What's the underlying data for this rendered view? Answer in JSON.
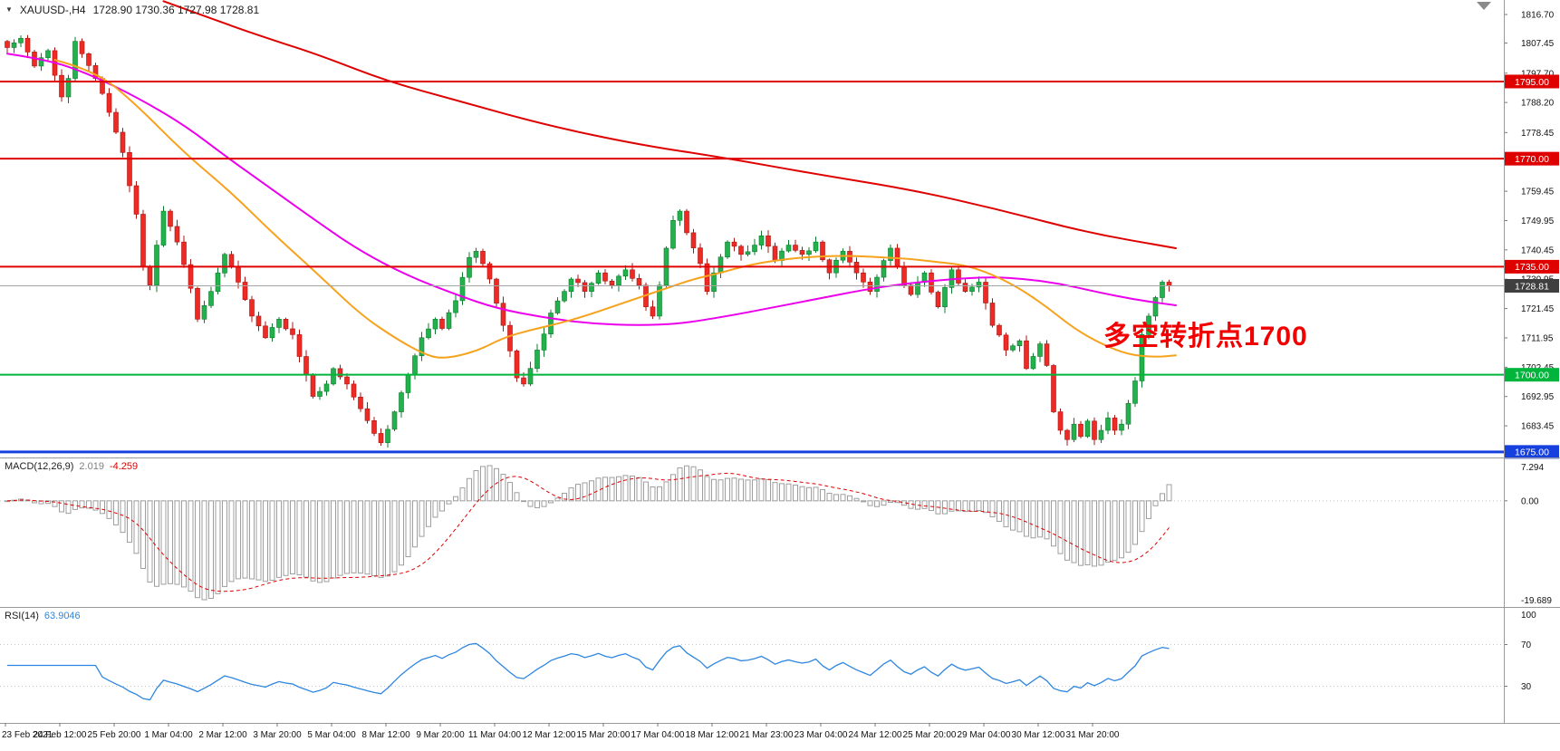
{
  "colors": {
    "background": "#FFFFFF",
    "up": "#22B14C",
    "up_border": "#0E7A2E",
    "down": "#EE2A24",
    "down_border": "#A81511",
    "line_red": "#DF0000",
    "line_green": "#00B43C",
    "line_blue": "#1641DE",
    "current_line": "#A6A6A6",
    "current_tag_bg": "#3F3F3F",
    "ma_red": "#DF0000",
    "ma_magenta": "#EC00EC",
    "ma_orange": "#F6A21C",
    "macd_bar": "#9E9E9E",
    "macd_signal": "#DF0000",
    "rsi_line": "#2E86E0",
    "annotation": "#F00000",
    "grid_dotted": "#C8C8C8",
    "separator": "#9A9A9A",
    "axis_text": "#111111"
  },
  "chart": {
    "title": {
      "dropdown_icon": "▼",
      "symbol": "XAUUSD-,H4",
      "ohlc": "1728.90 1730.36 1727.98 1728.81"
    },
    "annotation": {
      "text": "多空转折点1700"
    },
    "price_axis": {
      "ticks": [
        "1816.70",
        "1807.45",
        "1797.70",
        "1788.20",
        "1778.45",
        "1759.45",
        "1749.95",
        "1740.45",
        "1730.95",
        "1721.45",
        "1711.95",
        "1702.45",
        "1692.95",
        "1683.45"
      ],
      "range": {
        "top": 1821.4,
        "bottom": 1673.2
      }
    },
    "hlines": [
      {
        "price": 1795.0,
        "tag": "1795.00",
        "color_key": "line_red",
        "width": 2
      },
      {
        "price": 1770.0,
        "tag": "1770.00",
        "color_key": "line_red",
        "width": 2
      },
      {
        "price": 1735.0,
        "tag": "1735.00",
        "color_key": "line_red",
        "width": 2
      },
      {
        "price": 1700.0,
        "tag": "1700.00",
        "color_key": "line_green",
        "width": 2
      },
      {
        "price": 1675.0,
        "tag": "1675.00",
        "color_key": "line_blue",
        "width": 3
      }
    ],
    "current_price": {
      "value": 1728.81,
      "tag": "1728.81"
    },
    "candles": {
      "count": 172,
      "close_waypoints": [
        [
          0,
          1806
        ],
        [
          2,
          1809
        ],
        [
          4,
          1800
        ],
        [
          6,
          1805
        ],
        [
          7,
          1797
        ],
        [
          8,
          1790
        ],
        [
          9,
          1796
        ],
        [
          10,
          1808
        ],
        [
          11,
          1804
        ],
        [
          13,
          1796
        ],
        [
          15,
          1785
        ],
        [
          17,
          1772
        ],
        [
          19,
          1752
        ],
        [
          20,
          1735
        ],
        [
          21,
          1729
        ],
        [
          22,
          1742
        ],
        [
          23,
          1753
        ],
        [
          25,
          1743
        ],
        [
          27,
          1728
        ],
        [
          28,
          1718
        ],
        [
          30,
          1727
        ],
        [
          32,
          1739
        ],
        [
          34,
          1730
        ],
        [
          36,
          1719
        ],
        [
          38,
          1712
        ],
        [
          40,
          1718
        ],
        [
          42,
          1713
        ],
        [
          44,
          1700
        ],
        [
          45,
          1693
        ],
        [
          47,
          1697
        ],
        [
          48,
          1702
        ],
        [
          50,
          1697
        ],
        [
          52,
          1689
        ],
        [
          54,
          1681
        ],
        [
          55,
          1678
        ],
        [
          57,
          1688
        ],
        [
          59,
          1700
        ],
        [
          61,
          1712
        ],
        [
          63,
          1718
        ],
        [
          64,
          1715
        ],
        [
          66,
          1724
        ],
        [
          68,
          1738
        ],
        [
          69,
          1740
        ],
        [
          71,
          1731
        ],
        [
          73,
          1716
        ],
        [
          75,
          1699
        ],
        [
          76,
          1697
        ],
        [
          78,
          1708
        ],
        [
          80,
          1720
        ],
        [
          82,
          1727
        ],
        [
          83,
          1731
        ],
        [
          85,
          1727
        ],
        [
          87,
          1733
        ],
        [
          89,
          1729
        ],
        [
          91,
          1734
        ],
        [
          93,
          1729
        ],
        [
          94,
          1722
        ],
        [
          95,
          1719
        ],
        [
          96,
          1729
        ],
        [
          97,
          1741
        ],
        [
          98,
          1750
        ],
        [
          99,
          1753
        ],
        [
          100,
          1746
        ],
        [
          102,
          1736
        ],
        [
          103,
          1727
        ],
        [
          104,
          1733
        ],
        [
          106,
          1743
        ],
        [
          108,
          1739
        ],
        [
          110,
          1742
        ],
        [
          111,
          1745
        ],
        [
          113,
          1737
        ],
        [
          115,
          1742
        ],
        [
          117,
          1739
        ],
        [
          119,
          1743
        ],
        [
          121,
          1733
        ],
        [
          123,
          1740
        ],
        [
          125,
          1733
        ],
        [
          127,
          1727
        ],
        [
          129,
          1737
        ],
        [
          130,
          1741
        ],
        [
          132,
          1729
        ],
        [
          133,
          1726
        ],
        [
          135,
          1733
        ],
        [
          137,
          1722
        ],
        [
          139,
          1734
        ],
        [
          141,
          1727
        ],
        [
          143,
          1730
        ],
        [
          145,
          1716
        ],
        [
          147,
          1708
        ],
        [
          149,
          1711
        ],
        [
          150,
          1702
        ],
        [
          152,
          1710
        ],
        [
          153,
          1703
        ],
        [
          154,
          1688
        ],
        [
          155,
          1682
        ],
        [
          156,
          1679
        ],
        [
          157,
          1684
        ],
        [
          158,
          1680
        ],
        [
          159,
          1685
        ],
        [
          160,
          1679
        ],
        [
          161,
          1682
        ],
        [
          162,
          1686
        ],
        [
          163,
          1682
        ],
        [
          164,
          1684
        ],
        [
          166,
          1698
        ],
        [
          167,
          1713
        ],
        [
          168,
          1719
        ],
        [
          169,
          1725
        ],
        [
          170,
          1730
        ],
        [
          171,
          1728.8
        ]
      ]
    },
    "moving_averages": [
      {
        "name": "ma-slow-red",
        "color_key": "ma_red",
        "width": 2,
        "points": [
          [
            23,
            1821
          ],
          [
            33,
            1813
          ],
          [
            39,
            1808.5
          ],
          [
            46,
            1803.5
          ],
          [
            56,
            1795
          ],
          [
            66,
            1789
          ],
          [
            79,
            1781
          ],
          [
            93,
            1774.5
          ],
          [
            105,
            1770.5
          ],
          [
            119,
            1765
          ],
          [
            133,
            1760
          ],
          [
            146,
            1753.5
          ],
          [
            159,
            1746
          ],
          [
            172,
            1741
          ]
        ]
      },
      {
        "name": "ma-medium-magenta",
        "color_key": "ma_magenta",
        "width": 2,
        "points": [
          [
            0,
            1804
          ],
          [
            6,
            1802
          ],
          [
            12,
            1797.5
          ],
          [
            19,
            1790
          ],
          [
            26,
            1781
          ],
          [
            32,
            1771
          ],
          [
            39,
            1760
          ],
          [
            46,
            1749
          ],
          [
            52,
            1740
          ],
          [
            59,
            1732
          ],
          [
            66,
            1726
          ],
          [
            72,
            1721.5
          ],
          [
            79,
            1718.5
          ],
          [
            86,
            1716.5
          ],
          [
            93,
            1716
          ],
          [
            99,
            1716.5
          ],
          [
            106,
            1719
          ],
          [
            112,
            1721.5
          ],
          [
            119,
            1724.5
          ],
          [
            126,
            1727.5
          ],
          [
            132,
            1729.5
          ],
          [
            139,
            1731
          ],
          [
            145,
            1731.7
          ],
          [
            150,
            1731
          ],
          [
            155,
            1729.5
          ],
          [
            160,
            1727
          ],
          [
            166,
            1724.3
          ],
          [
            172,
            1722.5
          ]
        ]
      },
      {
        "name": "ma-fast-orange",
        "color_key": "ma_orange",
        "width": 2,
        "points": [
          [
            7,
            1802
          ],
          [
            13,
            1798.5
          ],
          [
            19,
            1787.5
          ],
          [
            26,
            1772
          ],
          [
            33,
            1759
          ],
          [
            39,
            1746
          ],
          [
            46,
            1732
          ],
          [
            52,
            1719.5
          ],
          [
            57,
            1712
          ],
          [
            61,
            1707
          ],
          [
            64,
            1705
          ],
          [
            69,
            1707.5
          ],
          [
            73,
            1712
          ],
          [
            77,
            1714.5
          ],
          [
            81,
            1716.5
          ],
          [
            85,
            1719
          ],
          [
            89,
            1722
          ],
          [
            93,
            1725
          ],
          [
            97,
            1728
          ],
          [
            101,
            1731
          ],
          [
            105,
            1733
          ],
          [
            109,
            1735.5
          ],
          [
            113,
            1737
          ],
          [
            117,
            1738
          ],
          [
            121,
            1738.5
          ],
          [
            125,
            1738.5
          ],
          [
            129,
            1738
          ],
          [
            133,
            1737.5
          ],
          [
            137,
            1736.5
          ],
          [
            141,
            1735.5
          ],
          [
            145,
            1732.5
          ],
          [
            149,
            1728
          ],
          [
            153,
            1722
          ],
          [
            157,
            1715
          ],
          [
            161,
            1710
          ],
          [
            165,
            1706.5
          ],
          [
            169,
            1705.7
          ],
          [
            172,
            1706.3
          ]
        ]
      }
    ],
    "time_axis": {
      "labels": [
        "23 Feb 2021",
        "24 Feb 12:00",
        "25 Feb 20:00",
        "1 Mar 04:00",
        "2 Mar 12:00",
        "3 Mar 20:00",
        "5 Mar 04:00",
        "8 Mar 12:00",
        "9 Mar 20:00",
        "11 Mar 04:00",
        "12 Mar 12:00",
        "15 Mar 20:00",
        "17 Mar 04:00",
        "18 Mar 12:00",
        "21 Mar 23:00",
        "23 Mar 04:00",
        "24 Mar 12:00",
        "25 Mar 20:00",
        "29 Mar 04:00",
        "30 Mar 12:00",
        "31 Mar 20:00"
      ]
    }
  },
  "macd": {
    "label": "MACD(12,26,9)",
    "main_value": "2.019",
    "signal_value": "-4.259",
    "axis_max": "7.294",
    "axis_zero": "0.00",
    "axis_min": "-19.689",
    "fast": 12,
    "slow": 26,
    "signal_period": 9
  },
  "rsi": {
    "label": "RSI(14)",
    "value": "63.9046",
    "axis_top": "100",
    "axis_upper": "70",
    "axis_lower": "30",
    "period": 14,
    "levels": [
      70,
      30
    ]
  }
}
